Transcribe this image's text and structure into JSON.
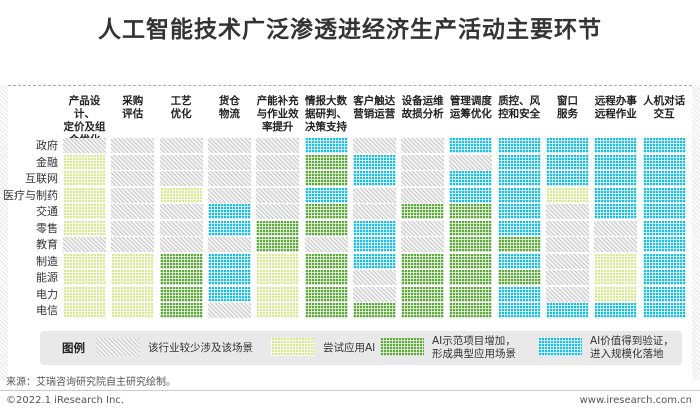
{
  "title": "人工智能技术广泛渗透进经济生产活动主要环节",
  "chart_data": {
    "type": "heatmap",
    "title": "人工智能技术广泛渗透进经济生产活动主要环节",
    "columns": [
      "产品设计、\n定价及组\n合优化",
      "采购\n评估",
      "工艺\n优化",
      "货仓\n物流",
      "产能补充\n与作业效\n率提升",
      "情报大数\n据研判、\n决策支持",
      "客户触达\n营销运营",
      "设备运维\n故损分析",
      "管理调度\n运筹优化",
      "质控、风\n控和安全",
      "窗口\n服务",
      "远程办事\n远程作业",
      "人机对话\n交互"
    ],
    "rows": [
      "政府",
      "金融",
      "互联网",
      "医疗与制药",
      "交通",
      "零售",
      "教育",
      "制造",
      "能源",
      "电力",
      "电信"
    ],
    "levels": [
      [
        0,
        0,
        0,
        0,
        0,
        3,
        0,
        0,
        3,
        3,
        3,
        3,
        3
      ],
      [
        1,
        0,
        0,
        0,
        0,
        2,
        3,
        0,
        0,
        3,
        3,
        3,
        3
      ],
      [
        1,
        0,
        0,
        0,
        0,
        2,
        3,
        0,
        3,
        3,
        3,
        3,
        3
      ],
      [
        1,
        0,
        1,
        0,
        0,
        3,
        0,
        0,
        3,
        3,
        1,
        3,
        3
      ],
      [
        1,
        0,
        0,
        3,
        0,
        2,
        0,
        2,
        2,
        3,
        0,
        3,
        3
      ],
      [
        1,
        0,
        0,
        3,
        2,
        2,
        3,
        0,
        2,
        3,
        0,
        0,
        3
      ],
      [
        0,
        0,
        0,
        0,
        2,
        0,
        3,
        0,
        2,
        2,
        0,
        0,
        3
      ],
      [
        1,
        1,
        2,
        3,
        1,
        2,
        3,
        2,
        2,
        3,
        0,
        1,
        3
      ],
      [
        1,
        1,
        2,
        3,
        1,
        2,
        0,
        2,
        2,
        2,
        0,
        1,
        3
      ],
      [
        1,
        1,
        2,
        3,
        1,
        2,
        0,
        2,
        2,
        3,
        0,
        1,
        3
      ],
      [
        1,
        1,
        2,
        0,
        1,
        2,
        2,
        2,
        2,
        3,
        3,
        3,
        3
      ]
    ],
    "legend": [
      {
        "level": 0,
        "label": "该行业较少涉及该场景"
      },
      {
        "level": 1,
        "label": "尝试应用AI"
      },
      {
        "level": 2,
        "label": "AI示范项目增加，\n形成典型应用场景"
      },
      {
        "level": 3,
        "label": "AI价值得到验证，\n进入规模化落地"
      }
    ],
    "legend_title": "图例",
    "colors": {
      "level0": "#d9d9d9",
      "level1": "#d4ec8e",
      "level2": "#5fa83c",
      "level3": "#1bbde8"
    }
  },
  "source": "来源：艾瑞咨询研究院自主研究绘制。",
  "copyright": "©2022.1 iResearch Inc.",
  "website": "www.iresearch.com.cn"
}
